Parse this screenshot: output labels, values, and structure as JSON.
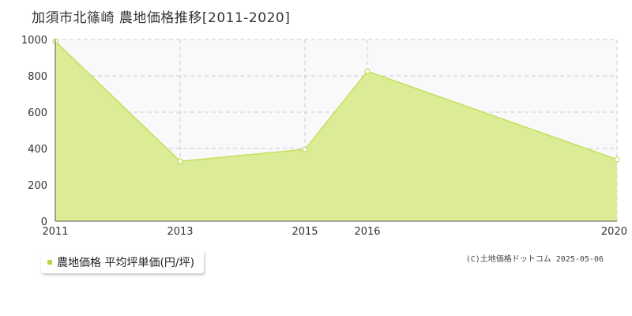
{
  "title": "加須市北篠崎 農地価格推移[2011-2020]",
  "legend": {
    "label": "農地価格 平均坪単価(円/坪)"
  },
  "copyright": "(C)土地価格ドットコム 2025-05-06",
  "colors": {
    "fill": "#dcec96",
    "line": "#c3e15a",
    "marker": "#b5d84a",
    "plot_bg": "#f9f8fa",
    "grid": "#cccccc",
    "axis": "#555555"
  },
  "chart_data": {
    "type": "area",
    "x": [
      "2011",
      "2013",
      "2015",
      "2016",
      "2020"
    ],
    "series": [
      {
        "name": "農地価格 平均坪単価(円/坪)",
        "values": [
          990,
          330,
          395,
          825,
          340
        ]
      }
    ],
    "xlabel": "",
    "ylabel": "",
    "ylim": [
      0,
      1000
    ],
    "yticks": [
      "0",
      "200",
      "400",
      "600",
      "800",
      "1000"
    ],
    "xticks": [
      "2011",
      "2013",
      "2015",
      "2016",
      "2020"
    ],
    "grid": true,
    "legend_position": "bottom-left"
  }
}
